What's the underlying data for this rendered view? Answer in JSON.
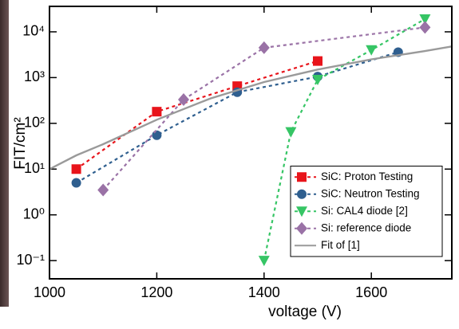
{
  "chart_data": {
    "type": "line",
    "xlabel": "voltage (V)",
    "ylabel": "FIT/cm²",
    "xlim": [
      1000,
      1750
    ],
    "xticks": [
      1000,
      1200,
      1400,
      1600
    ],
    "ylim": [
      0.04,
      36000
    ],
    "log_y": true,
    "yticks": [
      {
        "value": 0.1,
        "label": "10⁻¹"
      },
      {
        "value": 1,
        "label": "10⁰"
      },
      {
        "value": 10,
        "label": "10¹"
      },
      {
        "value": 100,
        "label": "10²"
      },
      {
        "value": 1000,
        "label": "10³"
      },
      {
        "value": 10000,
        "label": "10⁴"
      }
    ],
    "legend": "lower right",
    "series": [
      {
        "name": "SiC: Proton Testing",
        "color": "#e8141b",
        "marker": "square",
        "dashed": true,
        "x": [
          1050,
          1200,
          1350,
          1500
        ],
        "values": [
          10,
          180,
          650,
          2300
        ]
      },
      {
        "name": "SiC: Neutron Testing",
        "color": "#2f5f8f",
        "marker": "circle",
        "dashed": true,
        "x": [
          1050,
          1200,
          1350,
          1500,
          1650
        ],
        "values": [
          5,
          55,
          480,
          1050,
          3600
        ]
      },
      {
        "name": "Si: CAL4 diode [2]",
        "color": "#36c565",
        "marker": "triangle-down",
        "dashed": true,
        "x": [
          1400,
          1450,
          1500,
          1600,
          1700
        ],
        "values": [
          0.1,
          65,
          900,
          4000,
          19000
        ]
      },
      {
        "name": "Si:  reference diode",
        "color": "#9a72a6",
        "marker": "diamond",
        "dashed": true,
        "x": [
          1100,
          1250,
          1400,
          1700
        ],
        "values": [
          3.5,
          330,
          4500,
          12500
        ]
      },
      {
        "name": "Fit of [1]",
        "color": "#9a9a9a",
        "marker": "none",
        "dashed": false,
        "x": [
          1000,
          1050,
          1100,
          1200,
          1300,
          1400,
          1500,
          1600,
          1700,
          1750
        ],
        "values": [
          10,
          20,
          35,
          120,
          350,
          800,
          1500,
          2500,
          3800,
          4800
        ]
      }
    ]
  }
}
